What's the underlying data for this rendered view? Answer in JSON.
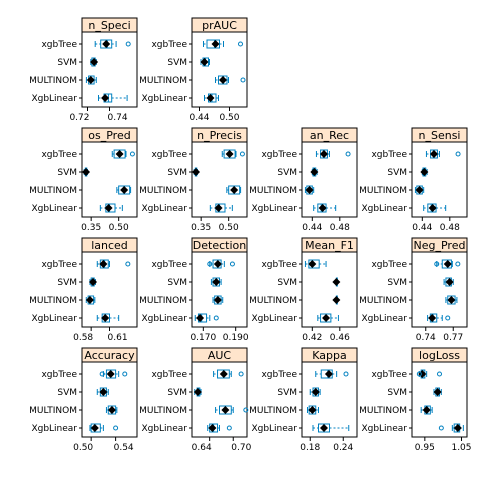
{
  "chart_data": {
    "type": "box",
    "layout": "4x4 lattice panels",
    "categories": [
      "xgbTree",
      "SVM",
      "MULTINOM",
      "XgbLinear"
    ],
    "colors": {
      "strip_bg": "#FFE5CC",
      "box": "#0080C0",
      "median_dot": "#000000",
      "outlier": "#0080C0"
    },
    "panels": [
      {
        "id": "specificity",
        "strip": "n_Speci",
        "xlim": [
          0.715,
          0.765
        ],
        "ticks": [
          0.72,
          0.74
        ],
        "tick_labels": [
          "0.72",
          "0.74"
        ],
        "boxes": [
          {
            "q1": 0.732,
            "q3": 0.742,
            "median": 0.738,
            "wlo": 0.727,
            "whi": 0.746,
            "mean": 0.737,
            "outliers": [
              0.757
            ]
          },
          {
            "q1": 0.724,
            "q3": 0.727,
            "median": 0.726,
            "wlo": 0.723,
            "whi": 0.728,
            "mean": 0.726,
            "outliers": []
          },
          {
            "q1": 0.721,
            "q3": 0.726,
            "median": 0.723,
            "wlo": 0.719,
            "whi": 0.728,
            "mean": 0.723,
            "outliers": []
          },
          {
            "q1": 0.735,
            "q3": 0.742,
            "median": 0.739,
            "wlo": 0.73,
            "whi": 0.756,
            "mean": 0.736,
            "outliers": []
          }
        ]
      },
      {
        "id": "prauc",
        "strip": "prAUC",
        "xlim": [
          0.425,
          0.535
        ],
        "ticks": [
          0.44,
          0.5
        ],
        "tick_labels": [
          "0.44",
          "0.50"
        ],
        "boxes": [
          {
            "q1": 0.455,
            "q3": 0.48,
            "median": 0.47,
            "wlo": 0.448,
            "whi": 0.488,
            "mean": 0.472,
            "outliers": [
              0.522
            ]
          },
          {
            "q1": 0.447,
            "q3": 0.458,
            "median": 0.452,
            "wlo": 0.443,
            "whi": 0.46,
            "mean": 0.45,
            "outliers": []
          },
          {
            "q1": 0.478,
            "q3": 0.495,
            "median": 0.488,
            "wlo": 0.472,
            "whi": 0.498,
            "mean": 0.487,
            "outliers": [
              0.527
            ]
          },
          {
            "q1": 0.458,
            "q3": 0.473,
            "median": 0.465,
            "wlo": 0.45,
            "whi": 0.478,
            "mean": 0.462,
            "outliers": []
          }
        ]
      },
      {
        "id": "empty-1",
        "empty": true
      },
      {
        "id": "empty-2",
        "empty": true
      },
      {
        "id": "pos-pred",
        "strip": "os_Pred",
        "xlim": [
          0.3,
          0.6
        ],
        "ticks": [
          0.35,
          0.5
        ],
        "tick_labels": [
          "0.35",
          "0.50"
        ],
        "boxes": [
          {
            "q1": 0.475,
            "q3": 0.535,
            "median": 0.505,
            "wlo": 0.465,
            "whi": 0.54,
            "mean": 0.505,
            "outliers": [
              0.575
            ]
          },
          {
            "q1": 0.318,
            "q3": 0.326,
            "median": 0.322,
            "wlo": 0.312,
            "whi": 0.33,
            "mean": 0.322,
            "outliers": []
          },
          {
            "q1": 0.5,
            "q3": 0.56,
            "median": 0.53,
            "wlo": 0.49,
            "whi": 0.565,
            "mean": 0.53,
            "outliers": []
          },
          {
            "q1": 0.43,
            "q3": 0.48,
            "median": 0.45,
            "wlo": 0.4,
            "whi": 0.52,
            "mean": 0.445,
            "outliers": []
          }
        ]
      },
      {
        "id": "precision",
        "strip": "n_Precis",
        "xlim": [
          0.3,
          0.6
        ],
        "ticks": [
          0.35,
          0.5
        ],
        "tick_labels": [
          "0.35",
          "0.50"
        ],
        "boxes": [
          {
            "q1": 0.475,
            "q3": 0.535,
            "median": 0.505,
            "wlo": 0.465,
            "whi": 0.54,
            "mean": 0.505,
            "outliers": [
              0.575
            ]
          },
          {
            "q1": 0.318,
            "q3": 0.326,
            "median": 0.322,
            "wlo": 0.312,
            "whi": 0.33,
            "mean": 0.322,
            "outliers": []
          },
          {
            "q1": 0.5,
            "q3": 0.56,
            "median": 0.53,
            "wlo": 0.49,
            "whi": 0.565,
            "mean": 0.53,
            "outliers": []
          },
          {
            "q1": 0.43,
            "q3": 0.48,
            "median": 0.45,
            "wlo": 0.4,
            "whi": 0.52,
            "mean": 0.445,
            "outliers": []
          }
        ]
      },
      {
        "id": "recall",
        "strip": "an_Rec",
        "xlim": [
          0.425,
          0.505
        ],
        "ticks": [
          0.44,
          0.48
        ],
        "tick_labels": [
          "0.44",
          "0.48"
        ],
        "boxes": [
          {
            "q1": 0.452,
            "q3": 0.462,
            "median": 0.456,
            "wlo": 0.446,
            "whi": 0.465,
            "mean": 0.457,
            "outliers": [
              0.492
            ]
          },
          {
            "q1": 0.441,
            "q3": 0.445,
            "median": 0.443,
            "wlo": 0.44,
            "whi": 0.447,
            "mean": 0.443,
            "outliers": []
          },
          {
            "q1": 0.432,
            "q3": 0.44,
            "median": 0.436,
            "wlo": 0.43,
            "whi": 0.442,
            "mean": 0.436,
            "outliers": []
          },
          {
            "q1": 0.448,
            "q3": 0.46,
            "median": 0.453,
            "wlo": 0.442,
            "whi": 0.474,
            "mean": 0.455,
            "outliers": []
          }
        ]
      },
      {
        "id": "sensitivity",
        "strip": "n_Sensi",
        "xlim": [
          0.425,
          0.505
        ],
        "ticks": [
          0.44,
          0.48
        ],
        "tick_labels": [
          "0.44",
          "0.48"
        ],
        "boxes": [
          {
            "q1": 0.452,
            "q3": 0.462,
            "median": 0.456,
            "wlo": 0.446,
            "whi": 0.465,
            "mean": 0.457,
            "outliers": [
              0.492
            ]
          },
          {
            "q1": 0.441,
            "q3": 0.445,
            "median": 0.443,
            "wlo": 0.44,
            "whi": 0.447,
            "mean": 0.443,
            "outliers": []
          },
          {
            "q1": 0.432,
            "q3": 0.44,
            "median": 0.436,
            "wlo": 0.43,
            "whi": 0.442,
            "mean": 0.436,
            "outliers": []
          },
          {
            "q1": 0.448,
            "q3": 0.46,
            "median": 0.453,
            "wlo": 0.442,
            "whi": 0.474,
            "mean": 0.455,
            "outliers": []
          }
        ]
      },
      {
        "id": "balanced",
        "strip": "lanced",
        "xlim": [
          0.565,
          0.655
        ],
        "ticks": [
          0.58,
          0.61
        ],
        "tick_labels": [
          "0.58",
          "0.61"
        ],
        "boxes": [
          {
            "q1": 0.595,
            "q3": 0.608,
            "median": 0.602,
            "wlo": 0.59,
            "whi": 0.61,
            "mean": 0.6,
            "outliers": [
              0.64
            ]
          },
          {
            "q1": 0.58,
            "q3": 0.585,
            "median": 0.583,
            "wlo": 0.578,
            "whi": 0.587,
            "mean": 0.583,
            "outliers": []
          },
          {
            "q1": 0.575,
            "q3": 0.584,
            "median": 0.578,
            "wlo": 0.572,
            "whi": 0.586,
            "mean": 0.578,
            "outliers": []
          },
          {
            "q1": 0.598,
            "q3": 0.61,
            "median": 0.603,
            "wlo": 0.59,
            "whi": 0.625,
            "mean": 0.603,
            "outliers": []
          }
        ]
      },
      {
        "id": "detection",
        "strip": "Detection",
        "xlim": [
          0.163,
          0.197
        ],
        "ticks": [
          0.17,
          0.19
        ],
        "tick_labels": [
          "0.170",
          "0.190"
        ],
        "boxes": [
          {
            "q1": 0.176,
            "q3": 0.181,
            "median": 0.179,
            "wlo": 0.174,
            "whi": 0.183,
            "mean": 0.179,
            "outliers": [
              0.174,
              0.188
            ]
          },
          {
            "q1": 0.176,
            "q3": 0.18,
            "median": 0.178,
            "wlo": 0.175,
            "whi": 0.181,
            "mean": 0.178,
            "outliers": []
          },
          {
            "q1": 0.177,
            "q3": 0.181,
            "median": 0.179,
            "wlo": 0.176,
            "whi": 0.182,
            "mean": 0.179,
            "outliers": []
          },
          {
            "q1": 0.167,
            "q3": 0.172,
            "median": 0.169,
            "wlo": 0.165,
            "whi": 0.174,
            "mean": 0.168,
            "outliers": [
              0.178
            ]
          }
        ]
      },
      {
        "id": "mean-f1",
        "strip": "Mean_F1",
        "xlim": [
          0.405,
          0.485
        ],
        "ticks": [
          0.42,
          0.46
        ],
        "tick_labels": [
          "0.42",
          "0.46"
        ],
        "boxes": [
          {
            "q1": 0.415,
            "q3": 0.43,
            "median": 0.42,
            "wlo": 0.41,
            "whi": 0.44,
            "mean": 0.42,
            "outliers": []
          },
          {
            "q1": 0.455,
            "q3": 0.455,
            "median": 0.455,
            "wlo": 0.455,
            "whi": 0.455,
            "mean": 0.455,
            "outliers": []
          },
          {
            "q1": 0.455,
            "q3": 0.455,
            "median": 0.455,
            "wlo": 0.455,
            "whi": 0.455,
            "mean": 0.455,
            "outliers": []
          },
          {
            "q1": 0.432,
            "q3": 0.447,
            "median": 0.44,
            "wlo": 0.428,
            "whi": 0.458,
            "mean": 0.44,
            "outliers": []
          }
        ]
      },
      {
        "id": "neg-pred",
        "strip": "Neg_Pred",
        "xlim": [
          0.725,
          0.785
        ],
        "ticks": [
          0.74,
          0.77
        ],
        "tick_labels": [
          "0.74",
          "0.77"
        ],
        "boxes": [
          {
            "q1": 0.758,
            "q3": 0.768,
            "median": 0.764,
            "wlo": 0.752,
            "whi": 0.769,
            "mean": 0.764,
            "outliers": [
              0.752,
              0.775
            ]
          },
          {
            "q1": 0.762,
            "q3": 0.768,
            "median": 0.766,
            "wlo": 0.76,
            "whi": 0.77,
            "mean": 0.766,
            "outliers": []
          },
          {
            "q1": 0.764,
            "q3": 0.772,
            "median": 0.768,
            "wlo": 0.762,
            "whi": 0.774,
            "mean": 0.768,
            "outliers": []
          },
          {
            "q1": 0.745,
            "q3": 0.752,
            "median": 0.748,
            "wlo": 0.742,
            "whi": 0.758,
            "mean": 0.747,
            "outliers": [
              0.764
            ]
          }
        ]
      },
      {
        "id": "accuracy",
        "strip": "Accuracy",
        "xlim": [
          0.485,
          0.575
        ],
        "ticks": [
          0.5,
          0.54
        ],
        "tick_labels": [
          "0.50",
          "0.54"
        ],
        "boxes": [
          {
            "q1": 0.525,
            "q3": 0.54,
            "median": 0.532,
            "wlo": 0.52,
            "whi": 0.545,
            "mean": 0.532,
            "outliers": [
              0.518,
              0.555
            ]
          },
          {
            "q1": 0.515,
            "q3": 0.525,
            "median": 0.52,
            "wlo": 0.51,
            "whi": 0.528,
            "mean": 0.52,
            "outliers": []
          },
          {
            "q1": 0.528,
            "q3": 0.54,
            "median": 0.534,
            "wlo": 0.525,
            "whi": 0.542,
            "mean": 0.534,
            "outliers": []
          },
          {
            "q1": 0.5,
            "q3": 0.515,
            "median": 0.506,
            "wlo": 0.498,
            "whi": 0.52,
            "mean": 0.506,
            "outliers": [
              0.54
            ]
          }
        ]
      },
      {
        "id": "auc",
        "strip": "AUC",
        "xlim": [
          0.595,
          0.735
        ],
        "ticks": [
          0.64,
          0.7
        ],
        "tick_labels": [
          "0.64",
          "0.70"
        ],
        "boxes": [
          {
            "q1": 0.66,
            "q3": 0.69,
            "median": 0.675,
            "wlo": 0.65,
            "whi": 0.695,
            "mean": 0.676,
            "outliers": [
              0.72
            ]
          },
          {
            "q1": 0.608,
            "q3": 0.615,
            "median": 0.612,
            "wlo": 0.602,
            "whi": 0.618,
            "mean": 0.61,
            "outliers": []
          },
          {
            "q1": 0.665,
            "q3": 0.695,
            "median": 0.68,
            "wlo": 0.655,
            "whi": 0.7,
            "mean": 0.68,
            "outliers": [
              0.732
            ]
          },
          {
            "q1": 0.64,
            "q3": 0.66,
            "median": 0.65,
            "wlo": 0.635,
            "whi": 0.665,
            "mean": 0.647,
            "outliers": [
              0.69
            ]
          }
        ]
      },
      {
        "id": "kappa",
        "strip": "Kappa",
        "xlim": [
          0.165,
          0.265
        ],
        "ticks": [
          0.18,
          0.24
        ],
        "tick_labels": [
          "0.18",
          "0.24"
        ],
        "boxes": [
          {
            "q1": 0.2,
            "q3": 0.22,
            "median": 0.212,
            "wlo": 0.19,
            "whi": 0.228,
            "mean": 0.214,
            "outliers": [
              0.245
            ]
          },
          {
            "q1": 0.185,
            "q3": 0.195,
            "median": 0.19,
            "wlo": 0.18,
            "whi": 0.198,
            "mean": 0.19,
            "outliers": []
          },
          {
            "q1": 0.178,
            "q3": 0.19,
            "median": 0.184,
            "wlo": 0.175,
            "whi": 0.195,
            "mean": 0.184,
            "outliers": []
          },
          {
            "q1": 0.195,
            "q3": 0.215,
            "median": 0.205,
            "wlo": 0.185,
            "whi": 0.25,
            "mean": 0.205,
            "outliers": []
          }
        ]
      },
      {
        "id": "logloss",
        "strip": "logLoss",
        "xlim": [
          0.915,
          1.065
        ],
        "ticks": [
          0.95,
          1.05
        ],
        "tick_labels": [
          "0.95",
          "1.05"
        ],
        "boxes": [
          {
            "q1": 0.94,
            "q3": 0.95,
            "median": 0.945,
            "wlo": 0.935,
            "whi": 0.955,
            "mean": 0.943,
            "outliers": [
              0.935,
              0.99
            ]
          },
          {
            "q1": 0.98,
            "q3": 0.99,
            "median": 0.985,
            "wlo": 0.975,
            "whi": 0.995,
            "mean": 0.985,
            "outliers": []
          },
          {
            "q1": 0.95,
            "q3": 0.965,
            "median": 0.958,
            "wlo": 0.94,
            "whi": 0.97,
            "mean": 0.955,
            "outliers": []
          },
          {
            "q1": 1.03,
            "q3": 1.045,
            "median": 1.038,
            "wlo": 1.025,
            "whi": 1.055,
            "mean": 1.04,
            "outliers": [
              0.995
            ]
          }
        ]
      }
    ]
  }
}
